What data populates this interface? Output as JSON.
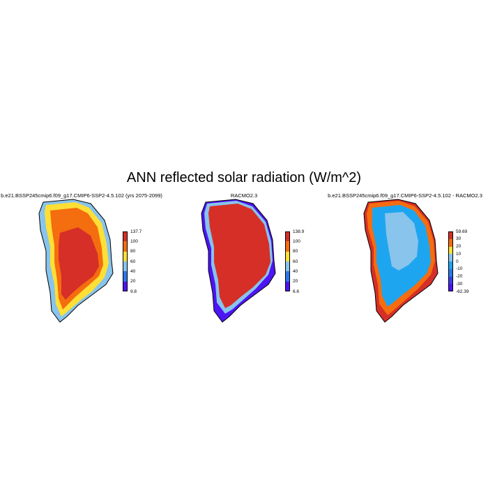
{
  "figure": {
    "title": "ANN reflected solar radiation (W/m^2)"
  },
  "panels": [
    {
      "title": "b.e21.BSSP245cmip6.f09_g17.CMIP6-SSP2-4.5.102 (yrs 2075-2099)",
      "colorbar": {
        "max_label": "137.7",
        "min_label": "9.8",
        "tick_labels": [
          "100",
          "80",
          "60",
          "40",
          "20"
        ],
        "colors": [
          "#d62f27",
          "#f46d0f",
          "#fedf35",
          "#88c4ec",
          "#2b78ea",
          "#4d14f4"
        ]
      }
    },
    {
      "title": "RACMO2.3",
      "colorbar": {
        "max_label": "138.9",
        "min_label": "6.6",
        "tick_labels": [
          "100",
          "80",
          "60",
          "40",
          "20"
        ],
        "colors": [
          "#d62f27",
          "#f46d0f",
          "#fedf35",
          "#88c4ec",
          "#2b78ea",
          "#4d14f4"
        ]
      }
    },
    {
      "title": "b.e21.BSSP245cmip6.f09_g17.CMIP6-SSP2-4.5.102 - RACMO2.3",
      "colorbar": {
        "max_label": "59.69",
        "min_label": "-62.39",
        "tick_labels": [
          "30",
          "20",
          "10",
          "0",
          "-10",
          "-20",
          "-30"
        ],
        "colors": [
          "#d62f27",
          "#f46d0f",
          "#fedf35",
          "#88c4ec",
          "#1ea5f0",
          "#2b78ea",
          "#3a3fe6",
          "#4d14f4"
        ]
      }
    }
  ]
}
